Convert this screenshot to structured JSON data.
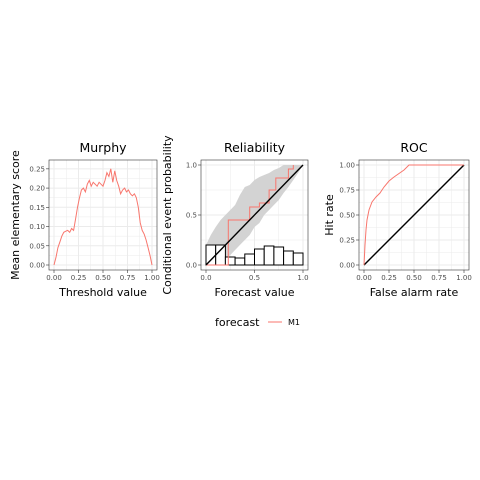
{
  "legend": {
    "title": "forecast",
    "entries": [
      {
        "name": "M1",
        "color": "#F8766D"
      }
    ]
  },
  "chart_data": [
    {
      "type": "line",
      "panel": "Murphy",
      "title": "Murphy",
      "xlabel": "Threshold value",
      "ylabel": "Mean elementary score",
      "xlim": [
        0,
        1
      ],
      "ylim": [
        0,
        0.26
      ],
      "xticks": [
        "0.00",
        "0.25",
        "0.50",
        "0.75",
        "1.00"
      ],
      "yticks": [
        "0.00",
        "0.05",
        "0.10",
        "0.15",
        "0.20",
        "0.25"
      ],
      "grid": true,
      "series": [
        {
          "name": "M1",
          "color": "#F8766D",
          "x": [
            0.0,
            0.02,
            0.04,
            0.06,
            0.08,
            0.1,
            0.12,
            0.14,
            0.16,
            0.18,
            0.2,
            0.22,
            0.24,
            0.26,
            0.28,
            0.3,
            0.32,
            0.34,
            0.36,
            0.38,
            0.4,
            0.42,
            0.44,
            0.46,
            0.48,
            0.5,
            0.52,
            0.54,
            0.56,
            0.58,
            0.6,
            0.62,
            0.64,
            0.66,
            0.68,
            0.7,
            0.72,
            0.74,
            0.76,
            0.78,
            0.8,
            0.82,
            0.84,
            0.86,
            0.88,
            0.9,
            0.92,
            0.94,
            0.96,
            0.98,
            1.0
          ],
          "y": [
            0.0,
            0.02,
            0.045,
            0.06,
            0.075,
            0.085,
            0.088,
            0.09,
            0.085,
            0.095,
            0.09,
            0.12,
            0.15,
            0.175,
            0.195,
            0.2,
            0.19,
            0.21,
            0.22,
            0.205,
            0.215,
            0.21,
            0.205,
            0.215,
            0.21,
            0.205,
            0.22,
            0.24,
            0.23,
            0.25,
            0.215,
            0.245,
            0.22,
            0.205,
            0.185,
            0.195,
            0.2,
            0.19,
            0.195,
            0.185,
            0.18,
            0.185,
            0.175,
            0.15,
            0.11,
            0.09,
            0.08,
            0.065,
            0.045,
            0.025,
            0.0
          ]
        }
      ]
    },
    {
      "type": "line",
      "panel": "Reliability",
      "title": "Reliability",
      "xlabel": "Forecast value",
      "ylabel": "Conditional event probability",
      "xlim": [
        0,
        1
      ],
      "ylim": [
        0,
        1
      ],
      "xticks": [
        "0.0",
        "0.5",
        "1.0"
      ],
      "yticks": [
        "0.0",
        "0.5",
        "1.0"
      ],
      "grid": true,
      "diagonal": true,
      "calibration": {
        "name": "M1",
        "color": "#F8766D",
        "steps": [
          [
            0.0,
            0.0
          ],
          [
            0.23,
            0.0
          ],
          [
            0.23,
            0.45
          ],
          [
            0.45,
            0.45
          ],
          [
            0.45,
            0.58
          ],
          [
            0.55,
            0.58
          ],
          [
            0.55,
            0.62
          ],
          [
            0.65,
            0.62
          ],
          [
            0.65,
            0.75
          ],
          [
            0.72,
            0.75
          ],
          [
            0.72,
            0.87
          ],
          [
            0.85,
            0.87
          ],
          [
            0.85,
            0.96
          ],
          [
            0.9,
            0.96
          ],
          [
            0.9,
            1.0
          ]
        ]
      },
      "consistency_band": {
        "x": [
          0.0,
          0.05,
          0.1,
          0.15,
          0.2,
          0.25,
          0.3,
          0.35,
          0.4,
          0.45,
          0.5,
          0.55,
          0.6,
          0.65,
          0.7,
          0.75,
          0.8,
          0.85,
          0.9,
          0.95,
          1.0
        ],
        "lower": [
          0.0,
          0.0,
          0.0,
          0.02,
          0.05,
          0.1,
          0.15,
          0.2,
          0.25,
          0.3,
          0.38,
          0.42,
          0.5,
          0.55,
          0.6,
          0.65,
          0.72,
          0.78,
          0.85,
          0.92,
          1.0
        ],
        "upper": [
          0.2,
          0.3,
          0.38,
          0.45,
          0.5,
          0.55,
          0.6,
          0.7,
          0.78,
          0.8,
          0.85,
          0.88,
          0.9,
          0.92,
          0.95,
          0.97,
          1.0,
          1.0,
          1.0,
          1.0,
          1.0
        ]
      },
      "histogram": {
        "bins": [
          [
            0.0,
            0.1
          ],
          [
            0.1,
            0.2
          ],
          [
            0.2,
            0.3
          ],
          [
            0.3,
            0.4
          ],
          [
            0.4,
            0.5
          ],
          [
            0.5,
            0.6
          ],
          [
            0.6,
            0.7
          ],
          [
            0.7,
            0.8
          ],
          [
            0.8,
            0.9
          ],
          [
            0.9,
            1.0
          ]
        ],
        "relative_heights": [
          0.2,
          0.2,
          0.08,
          0.07,
          0.11,
          0.16,
          0.19,
          0.18,
          0.14,
          0.12
        ]
      }
    },
    {
      "type": "line",
      "panel": "ROC",
      "title": "ROC",
      "xlabel": "False alarm rate",
      "ylabel": "Hit rate",
      "xlim": [
        0,
        1
      ],
      "ylim": [
        0,
        1
      ],
      "xticks": [
        "0.00",
        "0.25",
        "0.50",
        "0.75",
        "1.00"
      ],
      "yticks": [
        "0.00",
        "0.25",
        "0.50",
        "0.75",
        "1.00"
      ],
      "grid": true,
      "diagonal": true,
      "series": [
        {
          "name": "M1",
          "color": "#F8766D",
          "x": [
            0.0,
            0.01,
            0.02,
            0.03,
            0.05,
            0.08,
            0.12,
            0.16,
            0.2,
            0.25,
            0.3,
            0.4,
            0.45,
            0.6,
            0.8,
            1.0
          ],
          "y": [
            0.0,
            0.2,
            0.35,
            0.45,
            0.55,
            0.63,
            0.68,
            0.72,
            0.78,
            0.84,
            0.88,
            0.95,
            1.0,
            1.0,
            1.0,
            1.0
          ]
        }
      ]
    }
  ]
}
